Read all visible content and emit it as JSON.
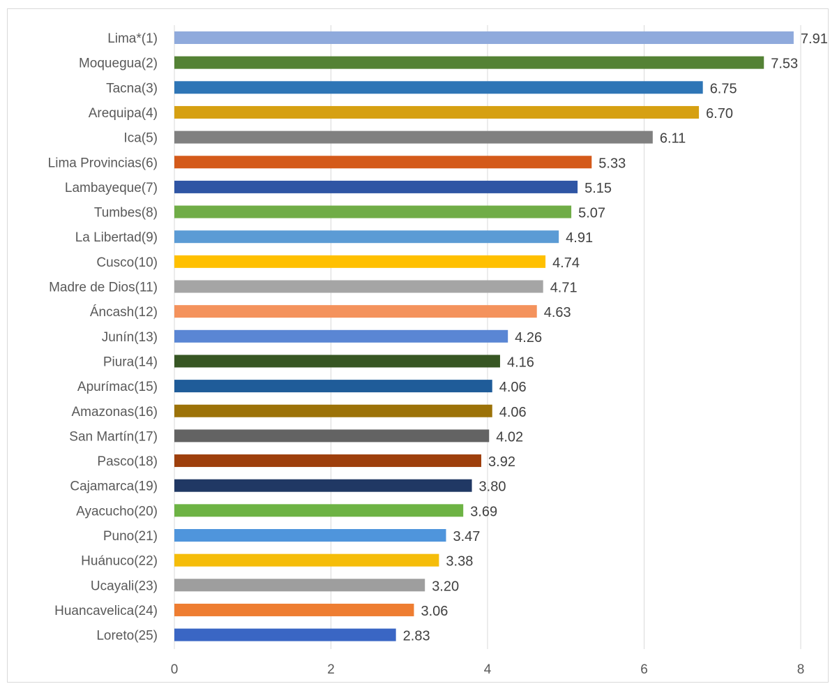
{
  "chart_data": {
    "type": "bar",
    "orientation": "horizontal",
    "title": "",
    "xlabel": "",
    "ylabel": "",
    "xlim": [
      0,
      8
    ],
    "x_ticks": [
      "0",
      "2",
      "4",
      "6",
      "8"
    ],
    "grid": "vertical",
    "legend": "none",
    "categories": [
      "Lima*(1)",
      "Moquegua(2)",
      "Tacna(3)",
      "Arequipa(4)",
      "Ica(5)",
      "Lima Provincias(6)",
      "Lambayeque(7)",
      "Tumbes(8)",
      "La Libertad(9)",
      "Cusco(10)",
      "Madre de Dios(11)",
      "Áncash(12)",
      "Junín(13)",
      "Piura(14)",
      "Apurímac(15)",
      "Amazonas(16)",
      "San Martín(17)",
      "Pasco(18)",
      "Cajamarca(19)",
      "Ayacucho(20)",
      "Puno(21)",
      "Huánuco(22)",
      "Ucayali(23)",
      "Huancavelica(24)",
      "Loreto(25)"
    ],
    "values": [
      7.91,
      7.53,
      6.75,
      6.7,
      6.11,
      5.33,
      5.15,
      5.07,
      4.91,
      4.74,
      4.71,
      4.63,
      4.26,
      4.16,
      4.06,
      4.06,
      4.02,
      3.92,
      3.8,
      3.69,
      3.47,
      3.38,
      3.2,
      3.06,
      2.83
    ],
    "value_labels": [
      "7.91",
      "7.53",
      "6.75",
      "6.70",
      "6.11",
      "5.33",
      "5.15",
      "5.07",
      "4.91",
      "4.74",
      "4.71",
      "4.63",
      "4.26",
      "4.16",
      "4.06",
      "4.06",
      "4.02",
      "3.92",
      "3.80",
      "3.69",
      "3.47",
      "3.38",
      "3.20",
      "3.06",
      "2.83"
    ],
    "colors": [
      "#8faadc",
      "#548235",
      "#2e75b6",
      "#d6a012",
      "#808080",
      "#d45a1a",
      "#2f55a4",
      "#70ad47",
      "#5b9bd5",
      "#ffc000",
      "#a5a5a5",
      "#f4925c",
      "#5a86d4",
      "#375623",
      "#1f5c99",
      "#9c7208",
      "#636363",
      "#9e3f0c",
      "#203864",
      "#6db344",
      "#4f95dc",
      "#f5bd0a",
      "#9e9e9e",
      "#ee7d31",
      "#3a66c4"
    ],
    "gridline_color": "#d9d9d9"
  }
}
